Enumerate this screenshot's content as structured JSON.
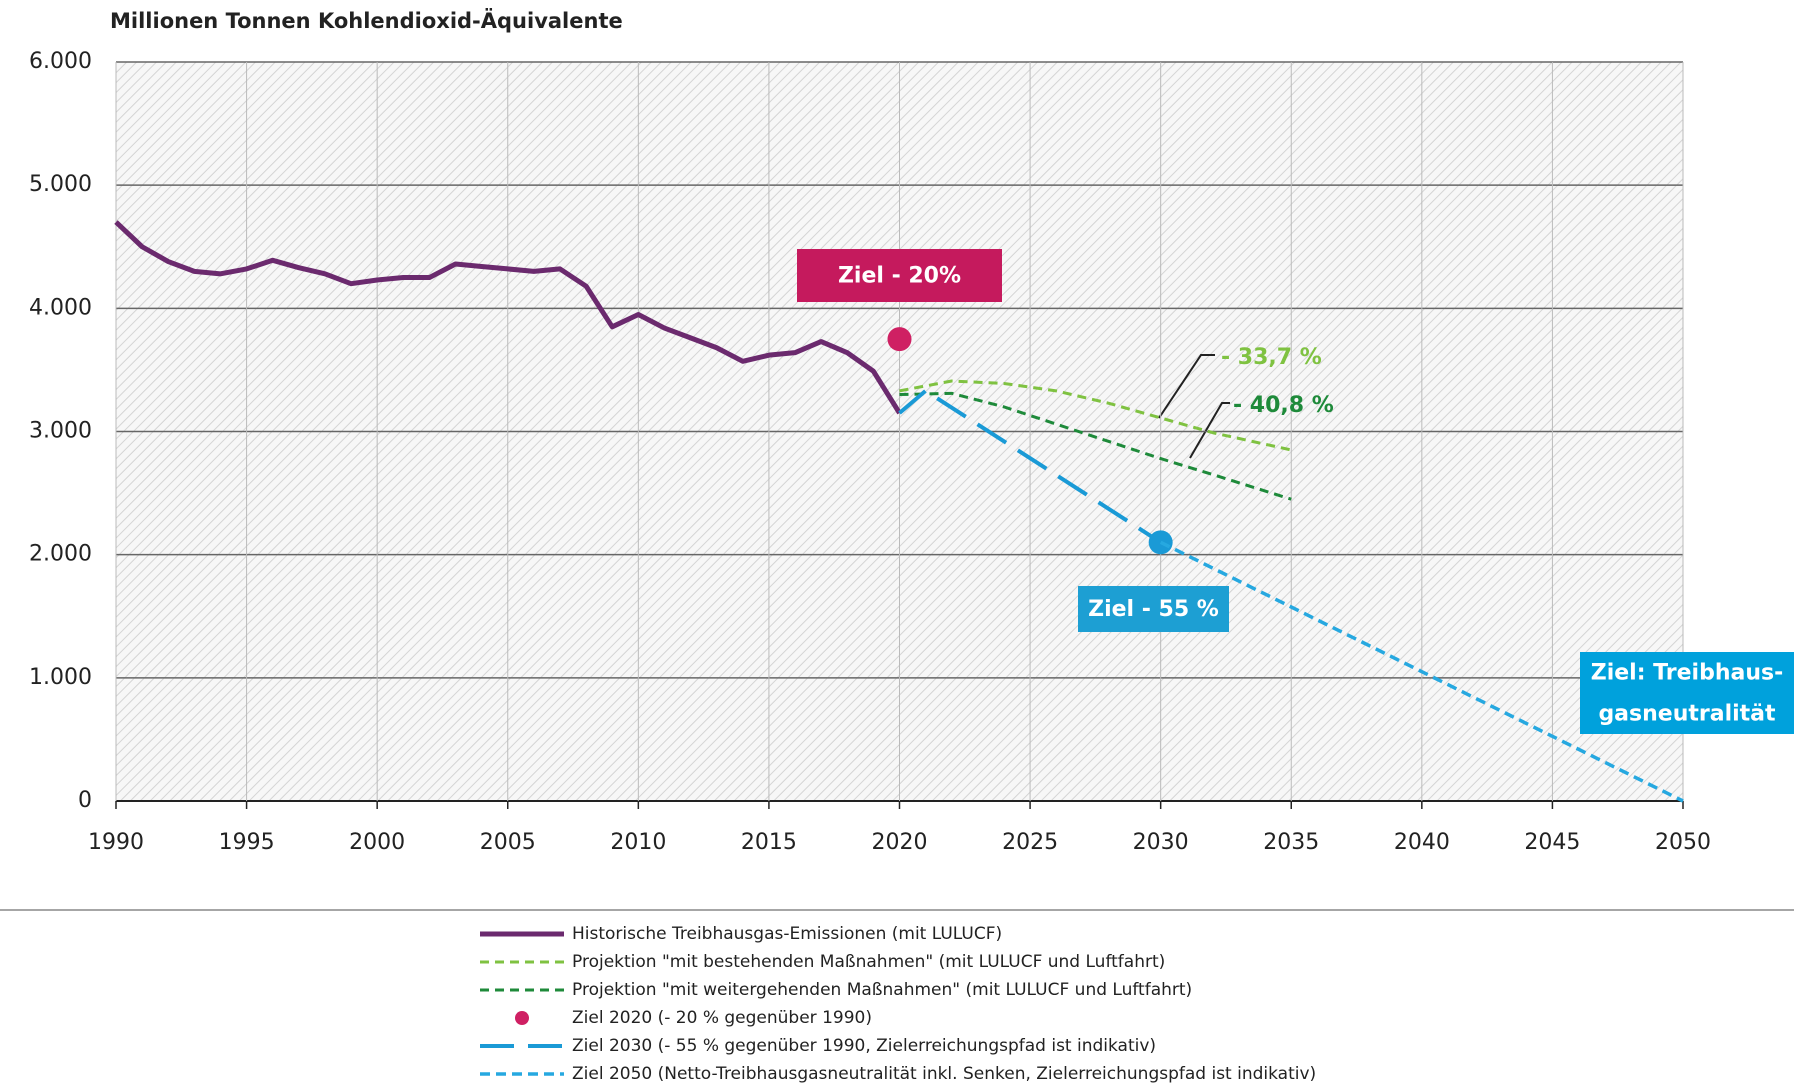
{
  "chart_data": {
    "type": "line",
    "title": "Millionen Tonnen Kohlendioxid-Äquivalente",
    "xlim": [
      1990,
      2050
    ],
    "xticks": [
      1990,
      1995,
      2000,
      2005,
      2010,
      2015,
      2020,
      2025,
      2030,
      2035,
      2040,
      2045,
      2050
    ],
    "ylim": [
      0,
      6000
    ],
    "yticks": [
      0,
      {
        "value": 1000,
        "label": "1.000"
      },
      {
        "value": 2000,
        "label": "2.000"
      },
      {
        "value": 3000,
        "label": "3.000"
      },
      {
        "value": 4000,
        "label": "4.000"
      },
      {
        "value": 5000,
        "label": "5.000"
      },
      {
        "value": 6000,
        "label": "6.000"
      }
    ],
    "grid": true,
    "series": [
      {
        "name": "Historische Treibhausgas-Emissionen (mit LULUCF)",
        "color": "#6b2a6e",
        "style": "solid",
        "x": [
          1990,
          1991,
          1992,
          1993,
          1994,
          1995,
          1996,
          1997,
          1998,
          1999,
          2000,
          2001,
          2002,
          2003,
          2004,
          2005,
          2006,
          2007,
          2008,
          2009,
          2010,
          2011,
          2012,
          2013,
          2014,
          2015,
          2016,
          2017,
          2018,
          2019,
          2020
        ],
        "values": [
          4700,
          4500,
          4380,
          4300,
          4280,
          4320,
          4390,
          4330,
          4280,
          4200,
          4230,
          4250,
          4250,
          4360,
          4340,
          4320,
          4300,
          4320,
          4180,
          3850,
          3950,
          3840,
          3760,
          3680,
          3570,
          3620,
          3640,
          3730,
          3640,
          3490,
          3150
        ]
      },
      {
        "name": "Projektion \"mit bestehenden Maßnahmen\" (mit LULUCF und Luftfahrt)",
        "color": "#7fc241",
        "style": "dash",
        "x": [
          2020,
          2022,
          2024,
          2026,
          2028,
          2030,
          2032,
          2035
        ],
        "values": [
          3330,
          3410,
          3390,
          3330,
          3230,
          3110,
          2990,
          2850
        ]
      },
      {
        "name": "Projektion \"mit weitergehenden Maßnahmen\" (mit LULUCF und Luftfahrt)",
        "color": "#1e8a3a",
        "style": "dash",
        "x": [
          2020,
          2022,
          2024,
          2026,
          2028,
          2030,
          2032,
          2035
        ],
        "values": [
          3300,
          3310,
          3200,
          3060,
          2920,
          2780,
          2650,
          2450
        ]
      },
      {
        "name": "Ziel 2020 (- 20 % gegenüber 1990)",
        "color": "#cf2063",
        "style": "point",
        "x": [
          2020
        ],
        "values": [
          3750
        ]
      },
      {
        "name": "Ziel 2030 (- 55 % gegenüber 1990, Zielerreichungspfad ist indikativ)",
        "color": "#1a9ad6",
        "style": "longdash",
        "end_marker": true,
        "x": [
          2020,
          2021,
          2030
        ],
        "values": [
          3150,
          3330,
          2100
        ]
      },
      {
        "name": "Ziel 2050 (Netto-Treibhausgasneutralität inkl. Senken, Zielerreichungspfad ist indikativ)",
        "color": "#26a8e0",
        "style": "shortdash",
        "x": [
          2030,
          2050
        ],
        "values": [
          2100,
          0
        ]
      }
    ],
    "annotations": [
      {
        "lines": [
          "Ziel - 20%"
        ],
        "color": "#c51a5d",
        "box": true
      },
      {
        "lines": [
          "- 33,7 %"
        ],
        "color": "#7fc241",
        "box": false
      },
      {
        "lines": [
          "- 40,8 %"
        ],
        "color": "#1e8a3a",
        "box": false
      },
      {
        "lines": [
          "Ziel - 55 %"
        ],
        "color": "#1d9fd3",
        "box": true
      },
      {
        "lines": [
          "Ziel: Treibhaus-",
          "gasneutralität"
        ],
        "color": "#00a1dc",
        "box": true
      }
    ]
  }
}
